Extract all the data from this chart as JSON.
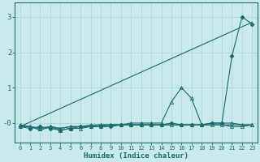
{
  "xlabel": "Humidex (Indice chaleur)",
  "bg_color": "#c8eaea",
  "grid_color": "#b0d8d8",
  "line_color": "#1a6b6b",
  "xlim": [
    -0.5,
    23.5
  ],
  "ylim": [
    -0.55,
    3.4
  ],
  "yticks": [
    0,
    1,
    2,
    3
  ],
  "ytick_labels": [
    "-0",
    "1",
    "2",
    "3"
  ],
  "xtick_labels": [
    "0",
    "1",
    "2",
    "3",
    "4",
    "5",
    "6",
    "7",
    "8",
    "9",
    "10",
    "11",
    "12",
    "13",
    "14",
    "15",
    "16",
    "17",
    "18",
    "19",
    "20",
    "21",
    "22",
    "23"
  ],
  "series": [
    {
      "x": [
        0,
        23
      ],
      "y": [
        -0.1,
        2.85
      ],
      "marker": null,
      "linestyle": "-",
      "lw": 0.8
    },
    {
      "x": [
        0,
        1,
        2,
        3,
        4,
        5,
        6,
        7,
        8,
        9,
        10,
        11,
        12,
        13,
        14,
        15,
        16,
        17,
        18,
        19,
        20,
        21,
        22,
        23
      ],
      "y": [
        -0.1,
        -0.15,
        -0.1,
        -0.15,
        -0.2,
        -0.15,
        -0.1,
        -0.1,
        -0.1,
        -0.1,
        -0.05,
        -0.05,
        -0.05,
        -0.05,
        -0.05,
        0.0,
        -0.05,
        -0.05,
        -0.05,
        0.0,
        0.0,
        1.9,
        3.0,
        2.8
      ],
      "marker": "D",
      "markersize": 2.5,
      "linestyle": "-",
      "lw": 0.8,
      "filled": true
    },
    {
      "x": [
        0,
        1,
        2,
        3,
        4,
        5,
        6,
        7,
        8,
        9,
        10,
        11,
        12,
        13,
        14,
        15,
        16,
        17,
        18,
        19,
        20,
        21,
        22,
        23
      ],
      "y": [
        -0.1,
        -0.1,
        -0.15,
        -0.1,
        -0.15,
        -0.1,
        -0.1,
        -0.05,
        -0.05,
        -0.05,
        -0.05,
        0.0,
        0.0,
        0.0,
        0.0,
        0.6,
        1.0,
        0.7,
        -0.05,
        0.0,
        0.0,
        0.0,
        -0.05,
        -0.05
      ],
      "marker": "^",
      "markersize": 3,
      "linestyle": "-",
      "lw": 0.8,
      "filled": false
    },
    {
      "x": [
        0,
        1,
        2,
        3,
        4,
        5,
        6,
        7,
        8,
        9,
        10,
        11,
        12,
        13,
        14,
        15,
        16,
        17,
        18,
        19,
        20,
        21,
        22,
        23
      ],
      "y": [
        -0.05,
        -0.1,
        -0.15,
        -0.1,
        -0.2,
        -0.15,
        -0.15,
        -0.1,
        -0.1,
        -0.05,
        -0.05,
        -0.05,
        -0.05,
        -0.05,
        -0.05,
        -0.05,
        -0.05,
        -0.05,
        -0.05,
        -0.05,
        -0.05,
        -0.1,
        -0.1,
        -0.05
      ],
      "marker": "^",
      "markersize": 3,
      "linestyle": "-",
      "lw": 0.8,
      "filled": false
    },
    {
      "x": [
        0,
        1,
        2,
        3,
        4,
        5,
        6,
        7,
        8,
        9,
        10,
        11,
        12,
        13,
        14,
        15,
        16,
        17,
        18,
        19,
        20,
        21,
        22,
        23
      ],
      "y": [
        -0.05,
        -0.1,
        -0.2,
        -0.1,
        -0.15,
        -0.1,
        -0.1,
        -0.1,
        -0.05,
        -0.05,
        -0.05,
        -0.05,
        -0.05,
        -0.05,
        -0.05,
        -0.05,
        -0.05,
        -0.05,
        -0.05,
        -0.05,
        -0.05,
        -0.05,
        -0.05,
        -0.05
      ],
      "marker": null,
      "markersize": 0,
      "linestyle": "-",
      "lw": 0.8,
      "filled": false
    }
  ]
}
